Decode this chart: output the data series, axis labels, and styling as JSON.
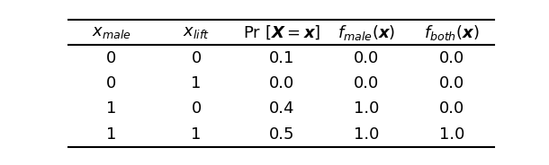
{
  "col_headers": [
    "$x_{male}$",
    "$x_{lift}$",
    "$\\Pr\\,[\\boldsymbol{X} = \\boldsymbol{x}]$",
    "$f_{male}(\\boldsymbol{x})$",
    "$f_{both}(\\boldsymbol{x})$"
  ],
  "rows": [
    [
      "0",
      "0",
      "0.1",
      "0.0",
      "0.0"
    ],
    [
      "0",
      "1",
      "0.0",
      "0.0",
      "0.0"
    ],
    [
      "1",
      "0",
      "0.4",
      "1.0",
      "0.0"
    ],
    [
      "1",
      "1",
      "0.5",
      "1.0",
      "1.0"
    ]
  ],
  "background_color": "#ffffff",
  "text_color": "#000000",
  "figsize": [
    6.1,
    1.84
  ],
  "dpi": 100
}
